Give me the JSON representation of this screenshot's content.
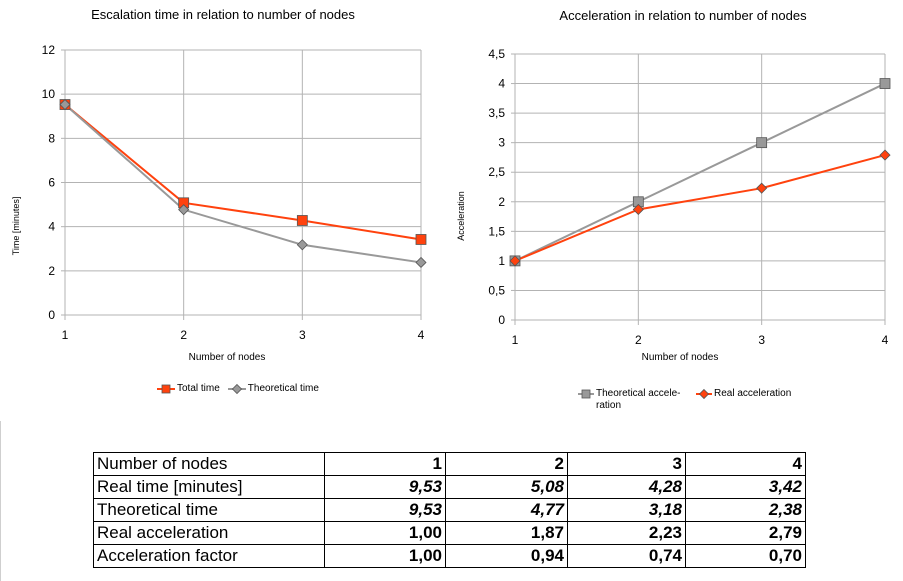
{
  "chart_data": [
    {
      "type": "line",
      "title": "Escalation time in relation to number of nodes",
      "xlabel": "Number of nodes",
      "ylabel": "Time [minutes]",
      "x": [
        1,
        2,
        3,
        4
      ],
      "xticks": [
        "1",
        "2",
        "3",
        "4"
      ],
      "ylim": [
        0,
        12
      ],
      "yticks": [
        "0",
        "2",
        "4",
        "6",
        "8",
        "10",
        "12"
      ],
      "grid": true,
      "legend": "bottom",
      "series": [
        {
          "name": "Total time",
          "values": [
            9.53,
            5.08,
            4.28,
            3.42
          ],
          "color": "#ff420e",
          "marker": "square"
        },
        {
          "name": "Theoretical time",
          "values": [
            9.53,
            4.77,
            3.18,
            2.38
          ],
          "color": "#999999",
          "marker": "diamond"
        }
      ]
    },
    {
      "type": "line",
      "title": "Acceleration in relation to number of nodes",
      "xlabel": "Number of nodes",
      "ylabel": "Acceleration",
      "x": [
        1,
        2,
        3,
        4
      ],
      "xticks": [
        "1",
        "2",
        "3",
        "4"
      ],
      "ylim": [
        0,
        4.5
      ],
      "yticks": [
        "0",
        "0,5",
        "1",
        "1,5",
        "2",
        "2,5",
        "3",
        "3,5",
        "4",
        "4,5"
      ],
      "grid": true,
      "legend": "bottom",
      "series": [
        {
          "name": "Theoretical accele-ration",
          "values": [
            1,
            2,
            3,
            4
          ],
          "color": "#999999",
          "marker": "square"
        },
        {
          "name": "Real acceleration",
          "values": [
            1.0,
            1.87,
            2.23,
            2.79
          ],
          "color": "#ff420e",
          "marker": "diamond"
        }
      ]
    }
  ],
  "legend_left": {
    "total_time": "Total time",
    "theoretical_time": "Theoretical time"
  },
  "legend_right": {
    "theoretical_acceleration": "Theoretical accele-ration",
    "real_acceleration": "Real acceleration"
  },
  "table": {
    "header": {
      "label": "Number of nodes",
      "values": [
        "1",
        "2",
        "3",
        "4"
      ]
    },
    "rows": [
      {
        "label": "Real time [minutes]",
        "values": [
          "9,53",
          "5,08",
          "4,28",
          "3,42"
        ]
      },
      {
        "label": "Theoretical time",
        "values": [
          "9,53",
          "4,77",
          "3,18",
          "2,38"
        ]
      },
      {
        "label": "Real acceleration",
        "values": [
          "1,00",
          "1,87",
          "2,23",
          "2,79"
        ]
      },
      {
        "label": "Acceleration factor",
        "values": [
          "1,00",
          "0,94",
          "0,74",
          "0,70"
        ]
      }
    ]
  },
  "colors": {
    "orange": "#ff420e",
    "gray": "#999999",
    "grid": "#b3b3b3",
    "marker_gray": "#999999"
  }
}
